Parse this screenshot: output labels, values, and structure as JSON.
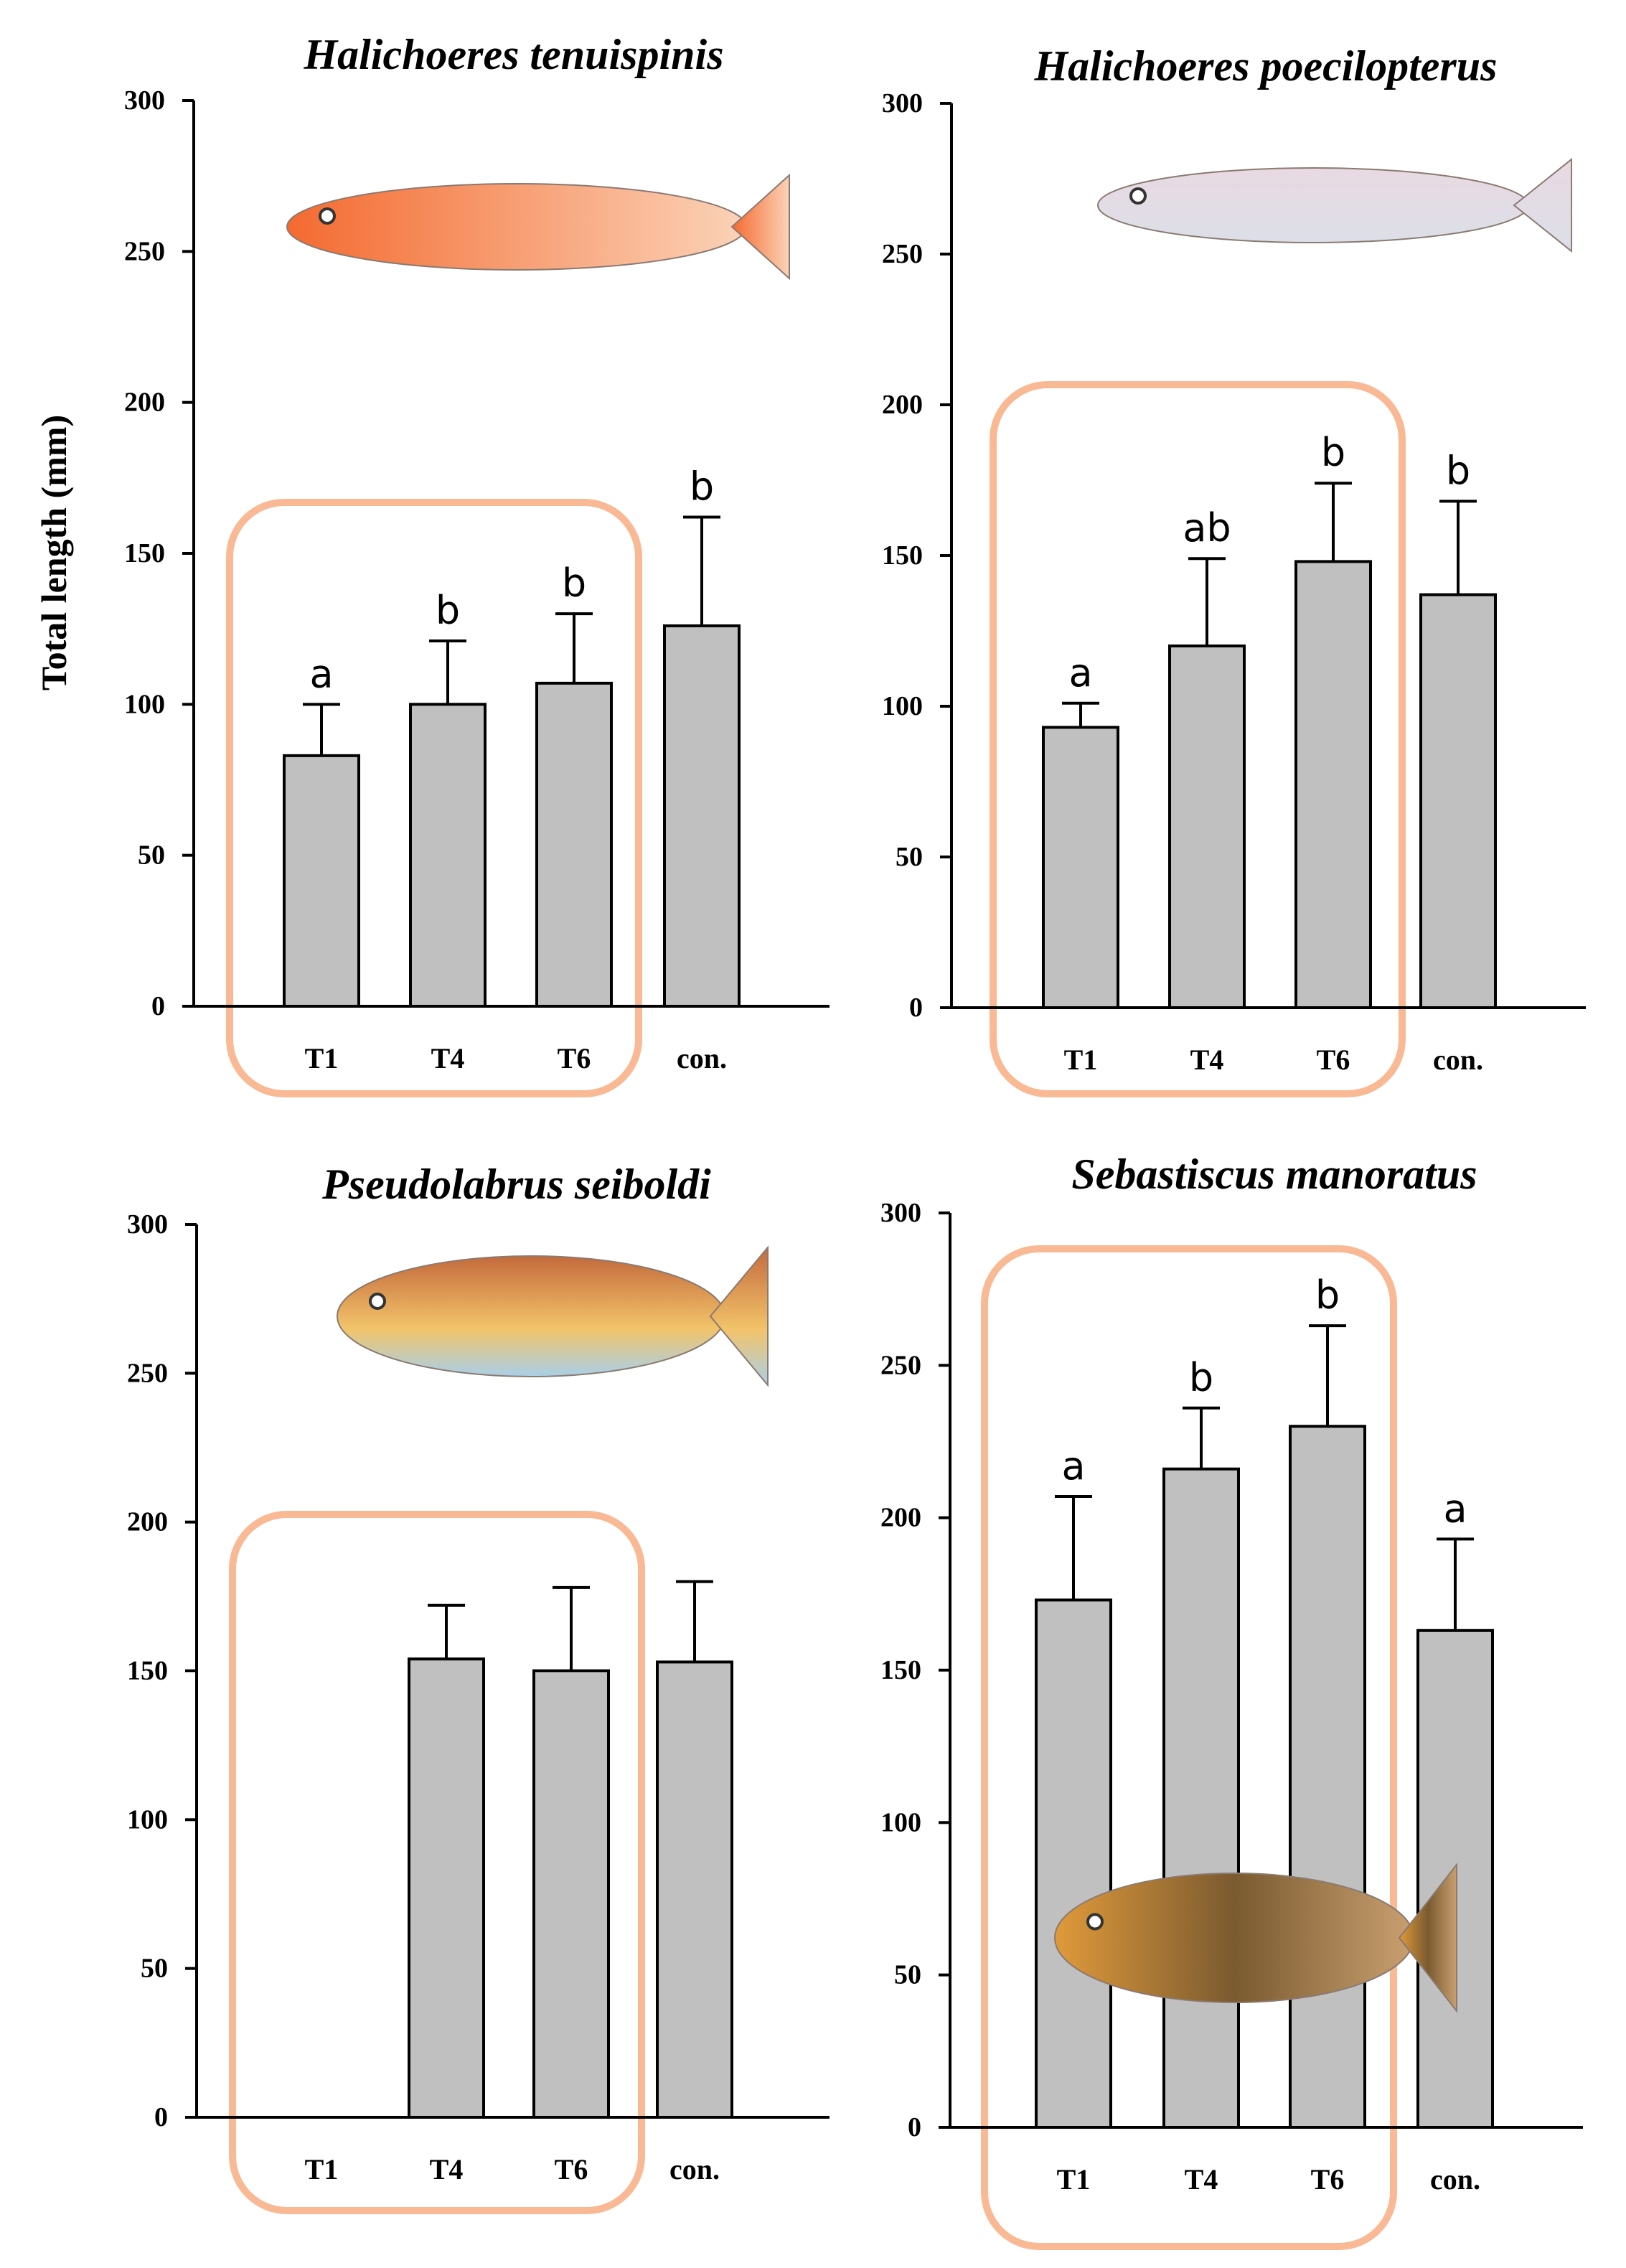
{
  "chart_data": [
    {
      "type": "bar",
      "title": "Halichoeres tenuispinis",
      "ylabel": "Total length (mm)",
      "ylim": [
        0,
        300
      ],
      "yticks": [
        0,
        50,
        100,
        150,
        200,
        250,
        300
      ],
      "categories": [
        "T1",
        "T4",
        "T6",
        "con."
      ],
      "values": [
        83,
        100,
        107,
        126
      ],
      "errors_upper": [
        100,
        121,
        130,
        162
      ],
      "letters": [
        "a",
        "b",
        "b",
        "b"
      ],
      "highlighted": [
        "T1",
        "T4",
        "T6"
      ]
    },
    {
      "type": "bar",
      "title": "Halichoeres poecilopterus",
      "ylabel": "",
      "ylim": [
        0,
        300
      ],
      "yticks": [
        0,
        50,
        100,
        150,
        200,
        250,
        300
      ],
      "categories": [
        "T1",
        "T4",
        "T6",
        "con."
      ],
      "values": [
        93,
        120,
        148,
        137
      ],
      "errors_upper": [
        101,
        149,
        174,
        168
      ],
      "letters": [
        "a",
        "ab",
        "b",
        "b"
      ],
      "highlighted": [
        "T1",
        "T4",
        "T6"
      ]
    },
    {
      "type": "bar",
      "title": "Pseudolabrus seiboldi",
      "ylabel": "",
      "ylim": [
        0,
        300
      ],
      "yticks": [
        0,
        50,
        100,
        150,
        200,
        250,
        300
      ],
      "categories": [
        "T1",
        "T4",
        "T6",
        "con."
      ],
      "values": [
        null,
        154,
        150,
        153
      ],
      "errors_upper": [
        null,
        172,
        178,
        180
      ],
      "letters": [
        "",
        "",
        "",
        ""
      ],
      "highlighted": [
        "T1",
        "T4",
        "T6"
      ]
    },
    {
      "type": "bar",
      "title": "Sebastiscus manoratus",
      "ylabel": "",
      "ylim": [
        0,
        300
      ],
      "yticks": [
        0,
        50,
        100,
        150,
        200,
        250,
        300
      ],
      "categories": [
        "T1",
        "T4",
        "T6",
        "con."
      ],
      "values": [
        173,
        216,
        230,
        163
      ],
      "errors_upper": [
        207,
        236,
        263,
        193
      ],
      "letters": [
        "a",
        "b",
        "b",
        "a"
      ],
      "highlighted": [
        "T1",
        "T4",
        "T6"
      ]
    }
  ],
  "colors": {
    "bar": "#c0c0c0",
    "highlight": "#f9b994"
  }
}
